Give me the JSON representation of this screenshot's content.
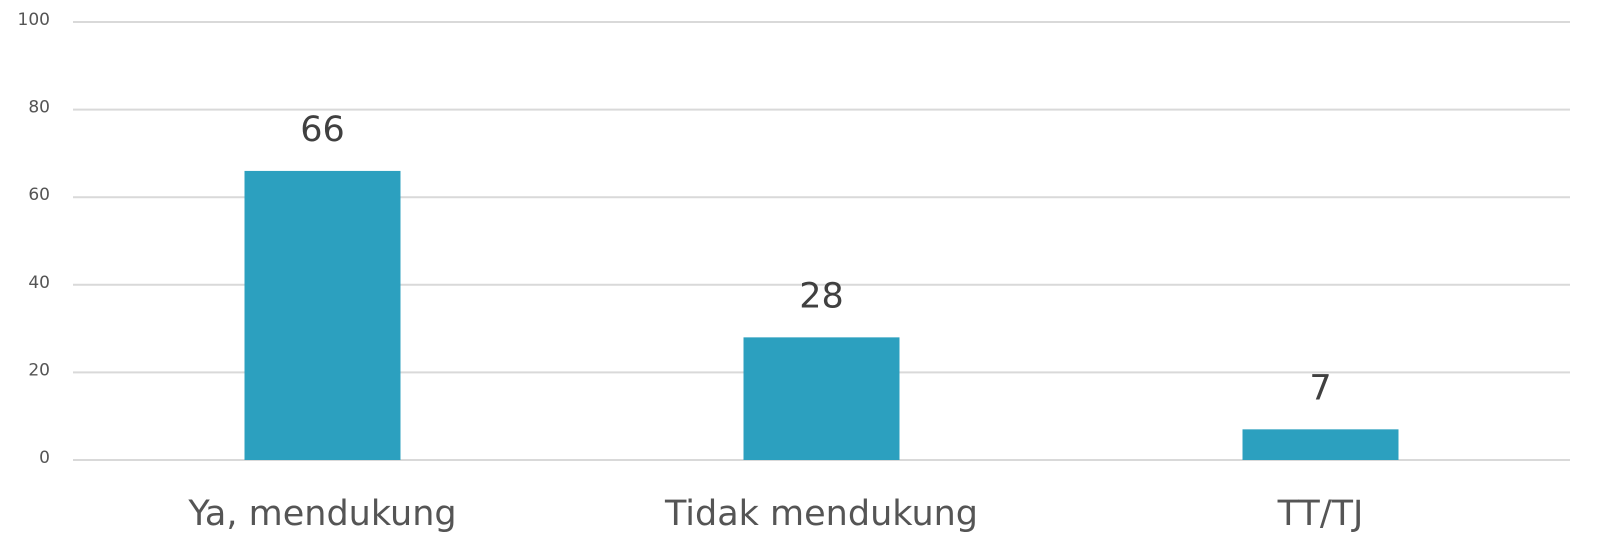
{
  "chart_data": {
    "type": "bar",
    "categories": [
      "Ya, mendukung",
      "Tidak mendukung",
      "TT/TJ"
    ],
    "values": [
      66,
      28,
      7
    ],
    "color": "#2ca0bf",
    "ylim": [
      0,
      100
    ],
    "yticks": [
      0,
      20,
      40,
      60,
      80,
      100
    ],
    "grid": true
  }
}
